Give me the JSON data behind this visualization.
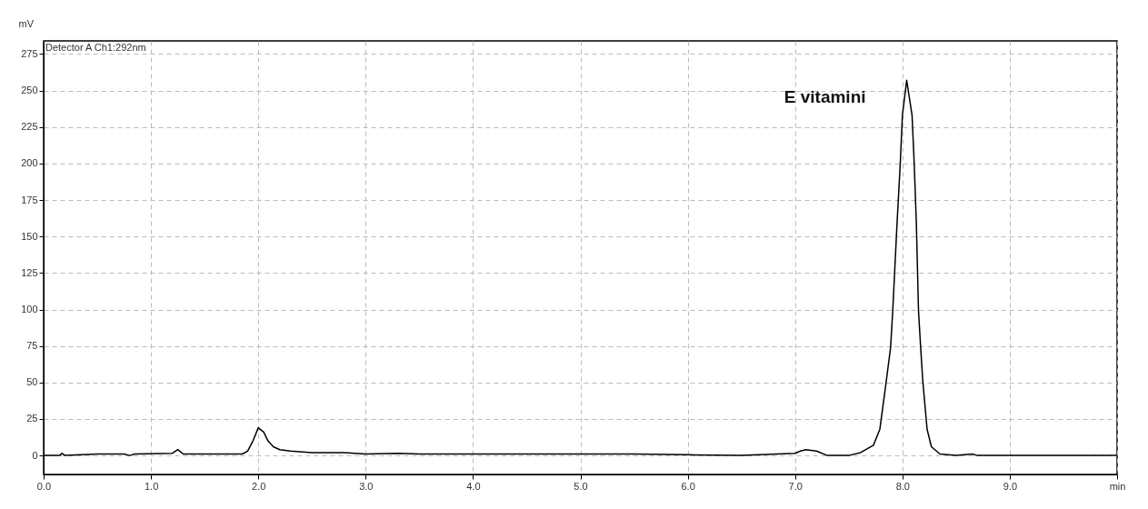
{
  "chart_data": {
    "type": "line",
    "xlabel": null,
    "ylabel": "mV",
    "xlim": [
      0,
      10
    ],
    "ylim": [
      -13,
      284
    ],
    "xticks": [
      {
        "value": 0,
        "label": "0.0"
      },
      {
        "value": 1,
        "label": "1.0"
      },
      {
        "value": 2,
        "label": "2.0"
      },
      {
        "value": 3,
        "label": "3.0"
      },
      {
        "value": 4,
        "label": "4.0"
      },
      {
        "value": 5,
        "label": "5.0"
      },
      {
        "value": 6,
        "label": "6.0"
      },
      {
        "value": 7,
        "label": "7.0"
      },
      {
        "value": 8,
        "label": "8.0"
      },
      {
        "value": 9,
        "label": "9.0"
      },
      {
        "value": 10,
        "label": "min"
      }
    ],
    "yticks": [
      0,
      25,
      50,
      75,
      100,
      125,
      150,
      175,
      200,
      225,
      250,
      275
    ],
    "grid": true,
    "marker": "none",
    "line_style": "solid",
    "legend": "top left",
    "annotations": [
      {
        "text": "E vitamini",
        "x": 8.04,
        "y": 257
      }
    ],
    "series": [
      {
        "name": "Detector A Ch1:292nm",
        "color": "#000000",
        "x": [
          0,
          0.15,
          0.17,
          0.2,
          0.5,
          0.75,
          0.8,
          0.85,
          1.2,
          1.25,
          1.3,
          1.85,
          1.9,
          1.95,
          2.0,
          2.05,
          2.09,
          2.14,
          2.2,
          2.3,
          2.5,
          2.8,
          3.0,
          3.3,
          3.5,
          4.0,
          5.0,
          5.5,
          6.0,
          6.5,
          7.0,
          7.05,
          7.1,
          7.2,
          7.3,
          7.5,
          7.61,
          7.73,
          7.79,
          7.85,
          7.89,
          7.91,
          7.95,
          7.98,
          8.0,
          8.04,
          8.09,
          8.11,
          8.13,
          8.15,
          8.17,
          8.19,
          8.23,
          8.27,
          8.35,
          8.5,
          8.65,
          8.7,
          9.0,
          10.0
        ],
        "values": [
          0,
          0,
          1.5,
          0,
          1,
          1,
          0,
          1,
          1.5,
          4,
          1,
          1,
          3,
          10,
          19,
          16,
          10,
          6,
          4,
          3,
          2,
          2,
          1,
          1.5,
          1,
          1,
          1,
          1,
          0.5,
          0,
          1.5,
          3,
          4,
          3,
          0,
          0,
          2,
          7,
          18,
          51,
          74,
          99,
          159,
          200,
          233,
          257,
          233,
          200,
          159,
          99,
          74,
          51,
          18,
          6,
          1,
          0,
          1,
          0,
          0,
          0
        ]
      }
    ]
  }
}
